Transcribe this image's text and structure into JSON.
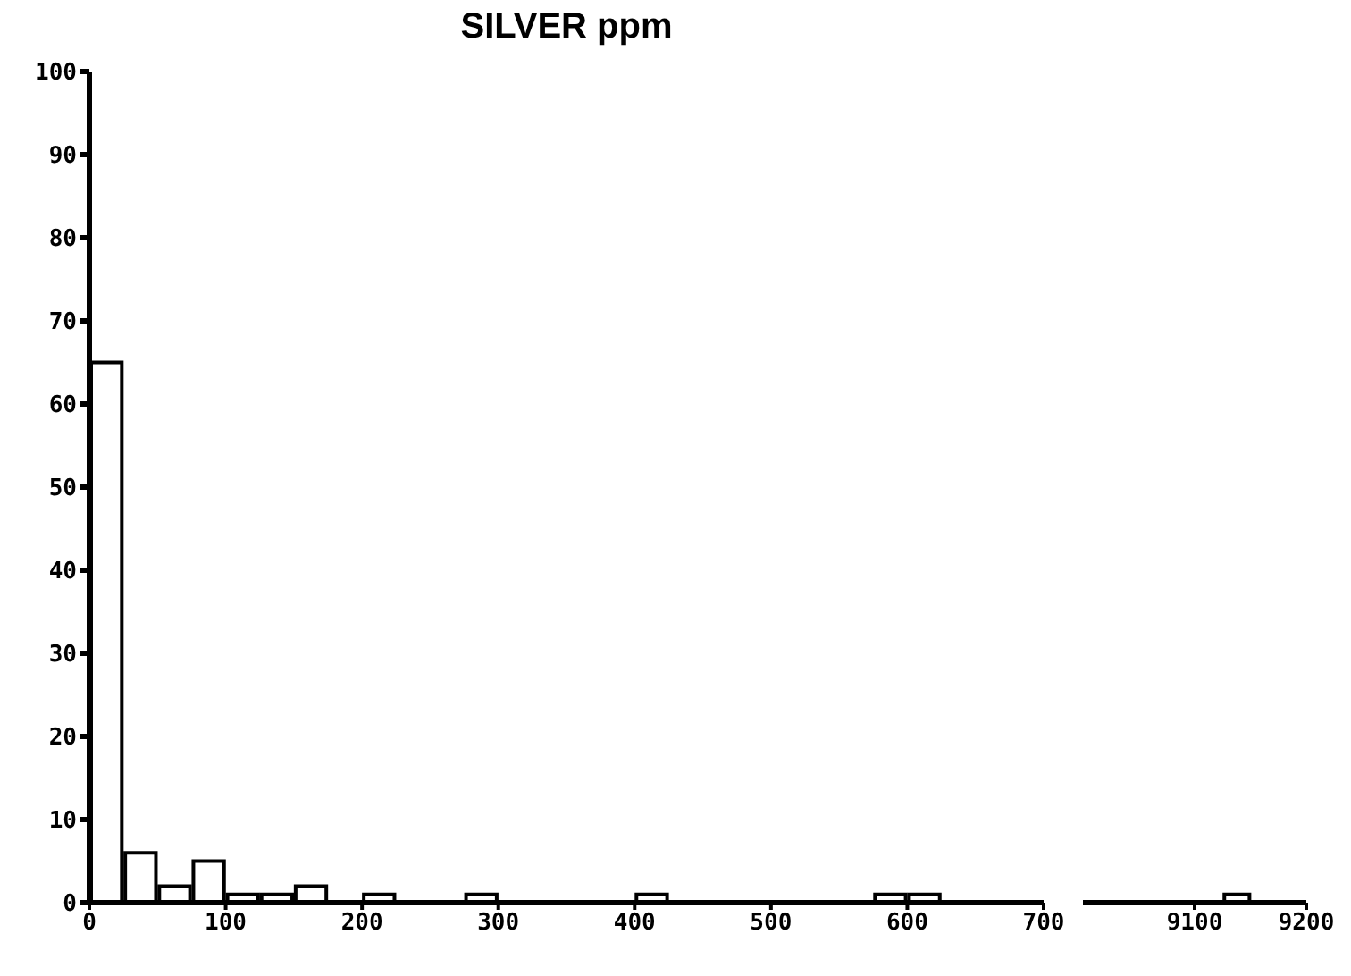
{
  "chart_data": [
    {
      "type": "histogram",
      "title": "SILVER ppm",
      "bins": [
        0,
        25,
        50,
        75,
        100,
        125,
        150,
        175,
        200,
        225,
        250,
        275,
        300,
        325,
        350,
        375,
        400,
        425,
        450,
        475,
        500,
        525,
        550,
        575,
        600,
        625,
        650,
        675,
        700
      ],
      "values": [
        65,
        6,
        2,
        5,
        1,
        1,
        2,
        0,
        1,
        0,
        0,
        1,
        0,
        0,
        0,
        0,
        1,
        0,
        0,
        0,
        0,
        0,
        0,
        1,
        1,
        0,
        0,
        0
      ],
      "color": "#ffffff",
      "xlim": [
        0,
        700
      ],
      "xticks": [
        0,
        100,
        200,
        300,
        400,
        500,
        600,
        700
      ],
      "ylim": [
        0,
        100
      ],
      "yticks": [
        0,
        10,
        20,
        30,
        40,
        50,
        60,
        70,
        80,
        90,
        100
      ],
      "grid": false
    },
    {
      "type": "histogram",
      "bins": [
        9100,
        9125,
        9150,
        9175,
        9200
      ],
      "values": [
        0,
        1,
        0,
        0
      ],
      "color": "#ffffff",
      "xlim": [
        9000,
        9200
      ],
      "xticks": [
        9100,
        9200
      ],
      "ylim": [
        0,
        100
      ],
      "tick_labels": "x",
      "grid": false
    }
  ]
}
